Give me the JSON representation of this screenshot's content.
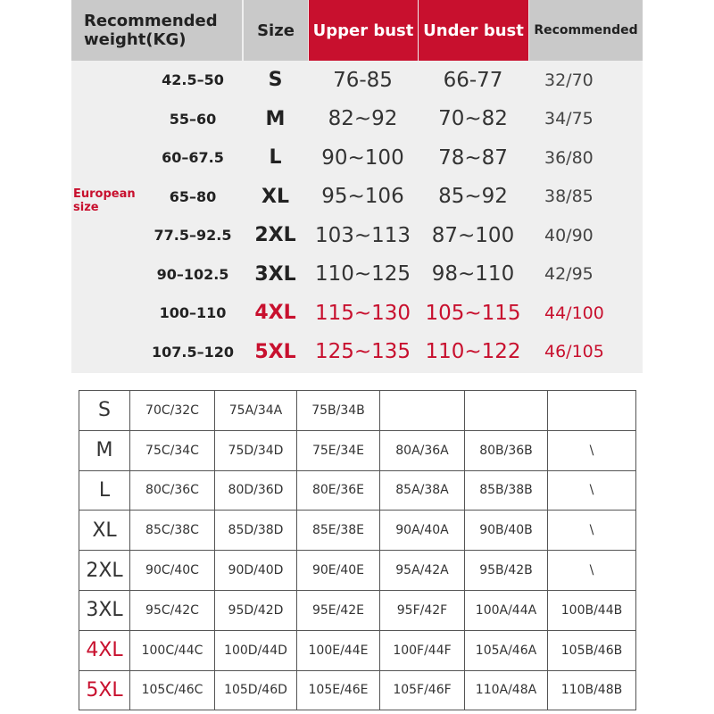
{
  "top_table": {
    "headers": [
      "Recommended weight(KG)",
      "Size",
      "Upper bust",
      "Under bust",
      "Recommended"
    ],
    "side_label": "European size",
    "rows": [
      [
        "42.5–50",
        "S",
        "76-85",
        "66-77",
        "32/70"
      ],
      [
        "55–60",
        "M",
        "82~92",
        "70~82",
        "34/75"
      ],
      [
        "60–67.5",
        "L",
        "90~100",
        "78~87",
        "36/80"
      ],
      [
        "65–80",
        "XL",
        "95~106",
        "85~92",
        "38/85"
      ],
      [
        "77.5–92.5",
        "2XL",
        "103~113",
        "87~100",
        "40/90"
      ],
      [
        "90–102.5",
        "3XL",
        "110~125",
        "98~110",
        "42/95"
      ],
      [
        "100–110",
        "4XL",
        "115~130",
        "105~115",
        "44/100"
      ],
      [
        "107.5–120",
        "5XL",
        "125~135",
        "110~122",
        "46/105"
      ]
    ]
  },
  "bottom_table": {
    "rows": [
      [
        "S",
        "70C/32C",
        "75A/34A",
        "75B/34B"
      ],
      [
        "M",
        "75C/34C",
        "75D/34D",
        "75E/34E",
        "80A/36A",
        "80B/36B",
        "\\"
      ],
      [
        "L",
        "80C/36C",
        "80D/36D",
        "80E/36E",
        "85A/38A",
        "85B/38B",
        "\\"
      ],
      [
        "XL",
        "85C/38C",
        "85D/38D",
        "85E/38E",
        "90A/40A",
        "90B/40B",
        "\\"
      ],
      [
        "2XL",
        "90C/40C",
        "90D/40D",
        "90E/40E",
        "95A/42A",
        "95B/42B",
        "\\"
      ],
      [
        "3XL",
        "95C/42C",
        "95D/42D",
        "95E/42E",
        "95F/42F",
        "100A/44A",
        "100B/44B"
      ],
      [
        "4XL",
        "100C/44C",
        "100D/44D",
        "100E/44E",
        "100F/44F",
        "105A/46A",
        "105B/46B"
      ],
      [
        "5XL",
        "105C/46C",
        "105D/46D",
        "105E/46E",
        "105F/46F",
        "110A/48A",
        "110B/48B"
      ]
    ]
  }
}
